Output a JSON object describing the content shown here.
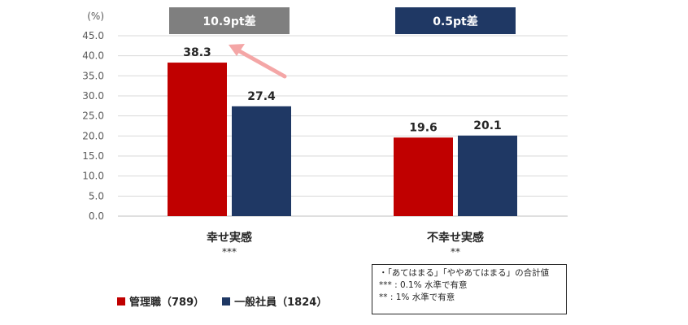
{
  "chart_data": {
    "type": "bar",
    "unit_label": "(%)",
    "categories": [
      "幸せ実感",
      "不幸せ実感"
    ],
    "significance": [
      "***",
      "**"
    ],
    "series": [
      {
        "name": "管理職（789）",
        "color": "#c00000",
        "values": [
          38.3,
          19.6
        ]
      },
      {
        "name": "一般社員（1824）",
        "color": "#1f3864",
        "values": [
          27.4,
          20.1
        ]
      }
    ],
    "value_labels": [
      [
        "38.3",
        "19.6"
      ],
      [
        "27.4",
        "20.1"
      ]
    ],
    "ylim": [
      0,
      45
    ],
    "y_ticks": [
      "0.0",
      "5.0",
      "10.0",
      "15.0",
      "20.0",
      "25.0",
      "30.0",
      "35.0",
      "40.0",
      "45.0"
    ],
    "grid": true,
    "legend_position": "bottom-left",
    "difference_boxes": [
      {
        "text": "10.9pt差",
        "color": "#7f7f7f"
      },
      {
        "text": "0.5pt差",
        "color": "#1f3864"
      }
    ],
    "arrow_color": "#f4a6a6"
  },
  "notes": [
    "・「あてはまる」「ややあてはまる」の合計値",
    "*** : 0.1% 水準で有意",
    "** : 1% 水準で有意"
  ]
}
